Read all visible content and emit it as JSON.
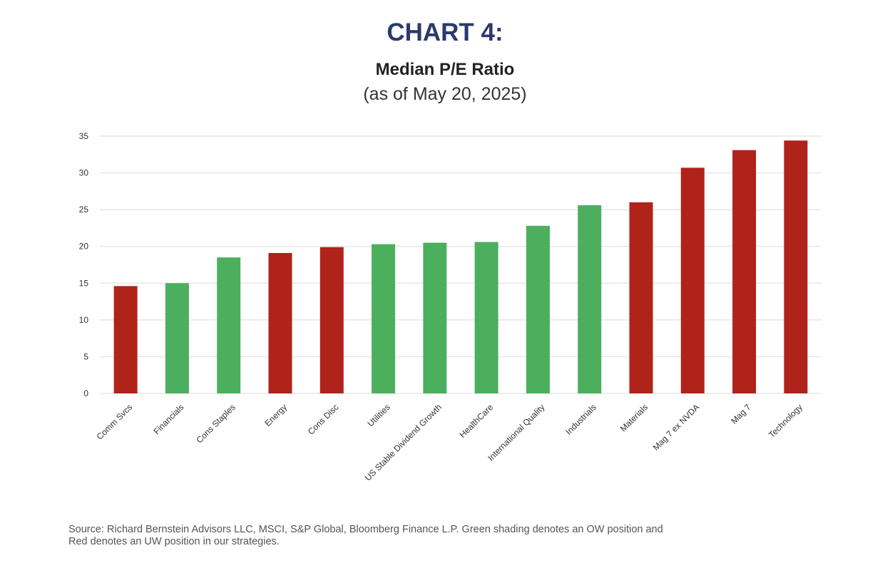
{
  "header": {
    "title": "CHART 4:",
    "subtitle": "Median P/E Ratio",
    "date": "(as of May 20, 2025)"
  },
  "colors": {
    "title": "#2b3a6b",
    "overweight": "#4caf5e",
    "underweight": "#b0231b",
    "grid": "#e2e2e2",
    "text": "#333333"
  },
  "chart_data": {
    "type": "bar",
    "title": "Median P/E Ratio",
    "xlabel": "",
    "ylabel": "",
    "ylim": [
      0,
      35
    ],
    "yticks": [
      0,
      5,
      10,
      15,
      20,
      25,
      30,
      35
    ],
    "grid": true,
    "categories": [
      "Comm Svcs",
      "Financials",
      "Cons Staples",
      "Energy",
      "Cons Disc",
      "Utilities",
      "US Stable Dividend Growth",
      "HealthCare",
      "International Quality",
      "Industrials",
      "Materials",
      "Mag 7 ex NVDA",
      "Mag 7",
      "Technology"
    ],
    "values": [
      14.6,
      15.0,
      18.5,
      19.1,
      19.9,
      20.3,
      20.5,
      20.6,
      22.8,
      25.6,
      26.0,
      30.7,
      33.1,
      34.4
    ],
    "position": [
      "UW",
      "OW",
      "OW",
      "UW",
      "UW",
      "OW",
      "OW",
      "OW",
      "OW",
      "OW",
      "UW",
      "UW",
      "UW",
      "UW"
    ]
  },
  "footer": {
    "source_line1": "Source: Richard Bernstein Advisors LLC, MSCI, S&P Global, Bloomberg Finance L.P. Green shading denotes an OW position and",
    "source_line2": "Red denotes an UW position in our strategies."
  }
}
